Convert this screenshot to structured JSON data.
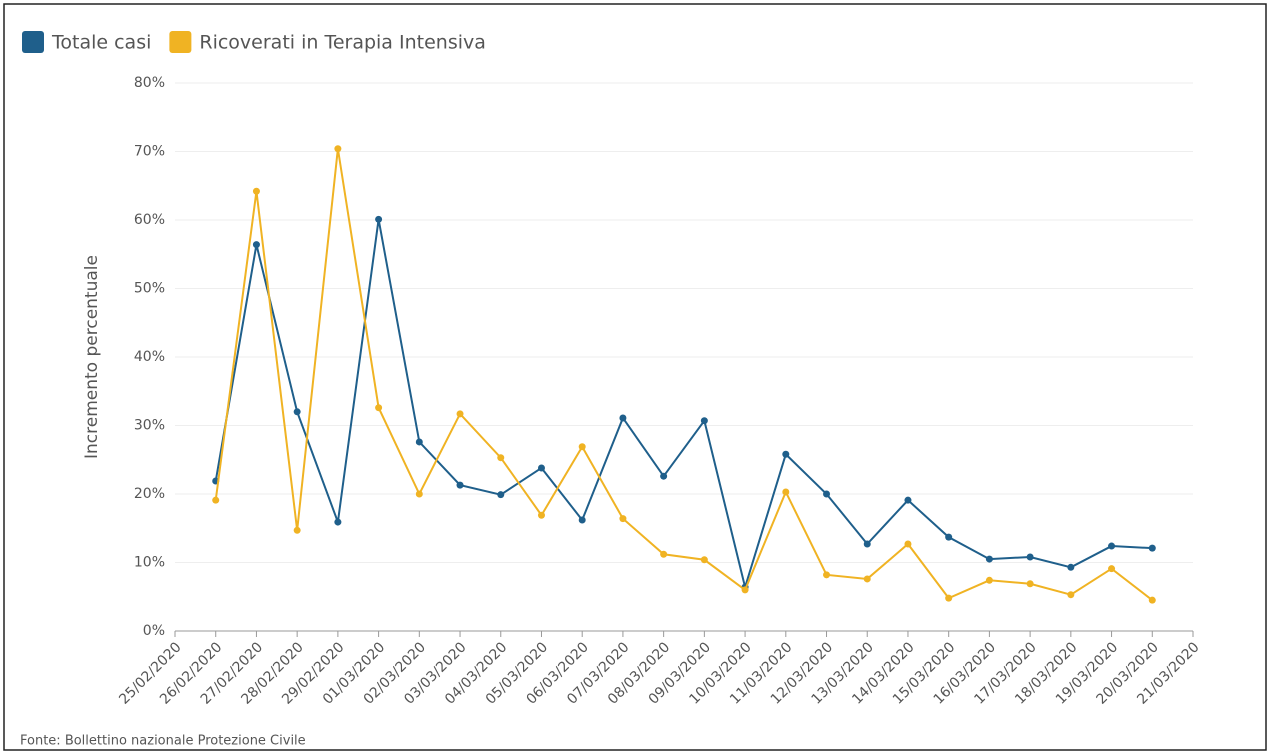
{
  "chart_data": {
    "type": "line",
    "y_label": "Incremento percentuale",
    "source": "Fonte: Bollettino nazionale Protezione Civile",
    "categories": [
      "25/02/2020",
      "26/02/2020",
      "27/02/2020",
      "28/02/2020",
      "29/02/2020",
      "01/03/2020",
      "02/03/2020",
      "03/03/2020",
      "04/03/2020",
      "05/03/2020",
      "06/03/2020",
      "07/03/2020",
      "08/03/2020",
      "09/03/2020",
      "10/03/2020",
      "11/03/2020",
      "12/03/2020",
      "13/03/2020",
      "14/03/2020",
      "15/03/2020",
      "16/03/2020",
      "17/03/2020",
      "18/03/2020",
      "19/03/2020",
      "20/03/2020",
      "21/03/2020"
    ],
    "series": [
      {
        "name": "Totale casi",
        "color": "#1f5f8b",
        "values": [
          null,
          21.9,
          56.4,
          32.0,
          15.9,
          60.1,
          27.6,
          21.3,
          19.9,
          23.8,
          16.2,
          31.1,
          22.6,
          30.7,
          6.4,
          25.8,
          20.0,
          12.7,
          19.1,
          13.7,
          10.5,
          10.8,
          9.3,
          12.4,
          12.1,
          null
        ]
      },
      {
        "name": "Ricoverati in Terapia Intensiva",
        "color": "#f0b323",
        "values": [
          null,
          19.1,
          64.2,
          14.7,
          70.4,
          32.6,
          20.0,
          31.7,
          25.3,
          16.9,
          26.9,
          16.4,
          11.2,
          10.4,
          6.0,
          20.3,
          8.2,
          7.6,
          12.7,
          4.8,
          7.4,
          6.9,
          5.3,
          9.1,
          4.5,
          null
        ]
      }
    ],
    "ylim": [
      0,
      80
    ],
    "yticks": [
      {
        "value": 0,
        "label": "0%"
      },
      {
        "value": 10,
        "label": "10%"
      },
      {
        "value": 20,
        "label": "20%"
      },
      {
        "value": 30,
        "label": "30%"
      },
      {
        "value": 40,
        "label": "40%"
      },
      {
        "value": 50,
        "label": "50%"
      },
      {
        "value": 60,
        "label": "60%"
      },
      {
        "value": 70,
        "label": "70%"
      },
      {
        "value": 80,
        "label": "80%"
      }
    ],
    "grid": true,
    "legend": "top-left"
  }
}
